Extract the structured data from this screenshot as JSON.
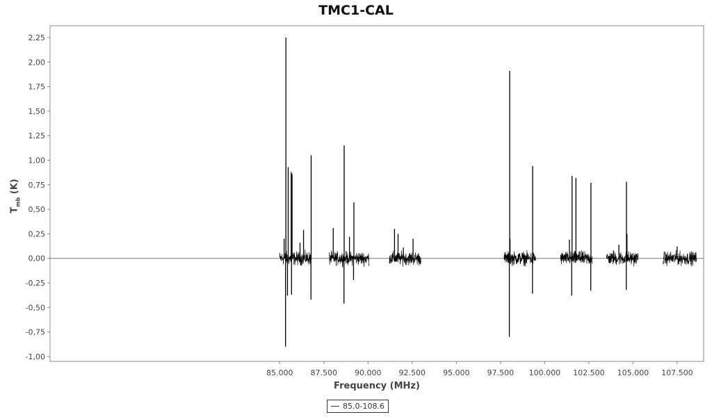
{
  "chart_data": {
    "type": "line",
    "title": "TMC1-CAL",
    "xlabel": "Frequency (MHz)",
    "ylabel_main": "T",
    "ylabel_sub": "mb",
    "ylabel_unit": " (K)",
    "xlim": [
      72000,
      109000
    ],
    "ylim": [
      -1.05,
      2.37
    ],
    "x_ticks": [
      85000,
      87500,
      90000,
      92500,
      95000,
      97500,
      100000,
      102500,
      105000,
      107500
    ],
    "x_tick_labels": [
      "85.000",
      "87.500",
      "90.000",
      "92.500",
      "95.000",
      "97.500",
      "100.000",
      "102.500",
      "105.000",
      "107.500"
    ],
    "y_ticks": [
      -1.0,
      -0.75,
      -0.5,
      -0.25,
      0.0,
      0.25,
      0.5,
      0.75,
      1.0,
      1.25,
      1.5,
      1.75,
      2.0,
      2.25
    ],
    "y_tick_labels": [
      "-1,00",
      "-0,75",
      "-0,50",
      "-0,25",
      "0,00",
      "0,25",
      "0,50",
      "0,75",
      "1,00",
      "1,25",
      "1,50",
      "1,75",
      "2,00",
      "2,25"
    ],
    "grid": false,
    "legend_position": "bottom-center",
    "series": [
      {
        "name": "85.0-108.6",
        "color": "#000000",
        "noise_rms": 0.03,
        "segments": [
          [
            85000,
            86800
          ],
          [
            87800,
            90050
          ],
          [
            91200,
            93000
          ],
          [
            97700,
            99500
          ],
          [
            100900,
            102700
          ],
          [
            103500,
            105300
          ],
          [
            106700,
            108600
          ]
        ],
        "peaks": [
          {
            "x": 85250,
            "y": 0.2
          },
          {
            "x": 85350,
            "y": 2.25
          },
          {
            "x": 85330,
            "y": -0.9
          },
          {
            "x": 85480,
            "y": 0.93
          },
          {
            "x": 85440,
            "y": -0.38
          },
          {
            "x": 85650,
            "y": 0.88
          },
          {
            "x": 85700,
            "y": 0.86
          },
          {
            "x": 85670,
            "y": -0.37
          },
          {
            "x": 86150,
            "y": 0.16
          },
          {
            "x": 86350,
            "y": 0.29
          },
          {
            "x": 86780,
            "y": 1.05
          },
          {
            "x": 86770,
            "y": -0.42
          },
          {
            "x": 88030,
            "y": 0.31
          },
          {
            "x": 88650,
            "y": 1.15
          },
          {
            "x": 88640,
            "y": -0.46
          },
          {
            "x": 88950,
            "y": 0.22
          },
          {
            "x": 89200,
            "y": 0.57
          },
          {
            "x": 89180,
            "y": -0.22
          },
          {
            "x": 91500,
            "y": 0.3
          },
          {
            "x": 91700,
            "y": 0.25
          },
          {
            "x": 92000,
            "y": 0.11
          },
          {
            "x": 92550,
            "y": 0.2
          },
          {
            "x": 98020,
            "y": 1.91
          },
          {
            "x": 98000,
            "y": -0.8
          },
          {
            "x": 98040,
            "y": 0.2
          },
          {
            "x": 99320,
            "y": 0.94
          },
          {
            "x": 99310,
            "y": -0.36
          },
          {
            "x": 101400,
            "y": 0.19
          },
          {
            "x": 101550,
            "y": 0.84
          },
          {
            "x": 101530,
            "y": -0.38
          },
          {
            "x": 101770,
            "y": 0.82
          },
          {
            "x": 102000,
            "y": 0.07
          },
          {
            "x": 102620,
            "y": 0.77
          },
          {
            "x": 102610,
            "y": -0.33
          },
          {
            "x": 103900,
            "y": 0.08
          },
          {
            "x": 104200,
            "y": 0.14
          },
          {
            "x": 104630,
            "y": 0.78
          },
          {
            "x": 104620,
            "y": -0.32
          },
          {
            "x": 104660,
            "y": 0.25
          },
          {
            "x": 107500,
            "y": 0.12
          }
        ]
      }
    ]
  }
}
